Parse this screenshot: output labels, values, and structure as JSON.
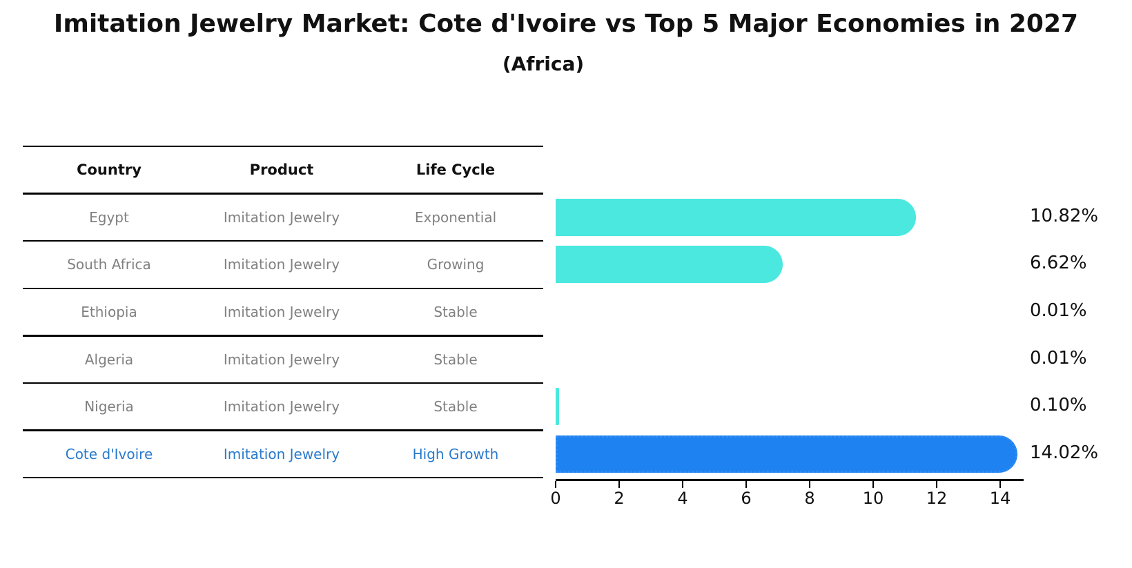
{
  "title": "Imitation Jewelry Market: Cote d'Ivoire vs Top 5 Major Economies in 2027",
  "subtitle": "(Africa)",
  "table": {
    "headers": [
      "Country",
      "Product",
      "Life Cycle"
    ],
    "rows": [
      {
        "country": "Egypt",
        "product": "Imitation Jewelry",
        "life_cycle": "Exponential",
        "highlight": false
      },
      {
        "country": "South Africa",
        "product": "Imitation Jewelry",
        "life_cycle": "Growing",
        "highlight": false
      },
      {
        "country": "Ethiopia",
        "product": "Imitation Jewelry",
        "life_cycle": "Stable",
        "highlight": false
      },
      {
        "country": "Algeria",
        "product": "Imitation Jewelry",
        "life_cycle": "Stable",
        "highlight": false
      },
      {
        "country": "Nigeria",
        "product": "Imitation Jewelry",
        "life_cycle": "Stable",
        "highlight": false
      },
      {
        "country": "Cote d'Ivoire",
        "product": "Imitation Jewelry",
        "life_cycle": "High Growth",
        "highlight": true
      }
    ]
  },
  "chart_data": {
    "type": "bar",
    "orientation": "horizontal",
    "title": "Imitation Jewelry Market: Cote d'Ivoire vs Top 5 Major Economies in 2027",
    "subtitle": "(Africa)",
    "categories": [
      "Egypt",
      "South Africa",
      "Ethiopia",
      "Algeria",
      "Nigeria",
      "Cote d'Ivoire"
    ],
    "values": [
      10.82,
      6.62,
      0.01,
      0.01,
      0.1,
      14.02
    ],
    "value_labels": [
      "10.82%",
      "6.62%",
      "0.01%",
      "0.01%",
      "0.10%",
      "14.02%"
    ],
    "x_ticks": [
      0,
      2,
      4,
      6,
      8,
      10,
      12,
      14
    ],
    "xlim": [
      0,
      14.7
    ],
    "xlabel": "",
    "ylabel": "",
    "grid": false,
    "legend": false,
    "highlight_index": 5,
    "bar_color": "#4AE8DF",
    "highlight_bar_color": "#1E82F0",
    "highlight_border_color": "#2F8CF5",
    "highlight_text_color": "#2879CC",
    "text_color": "#808080"
  }
}
